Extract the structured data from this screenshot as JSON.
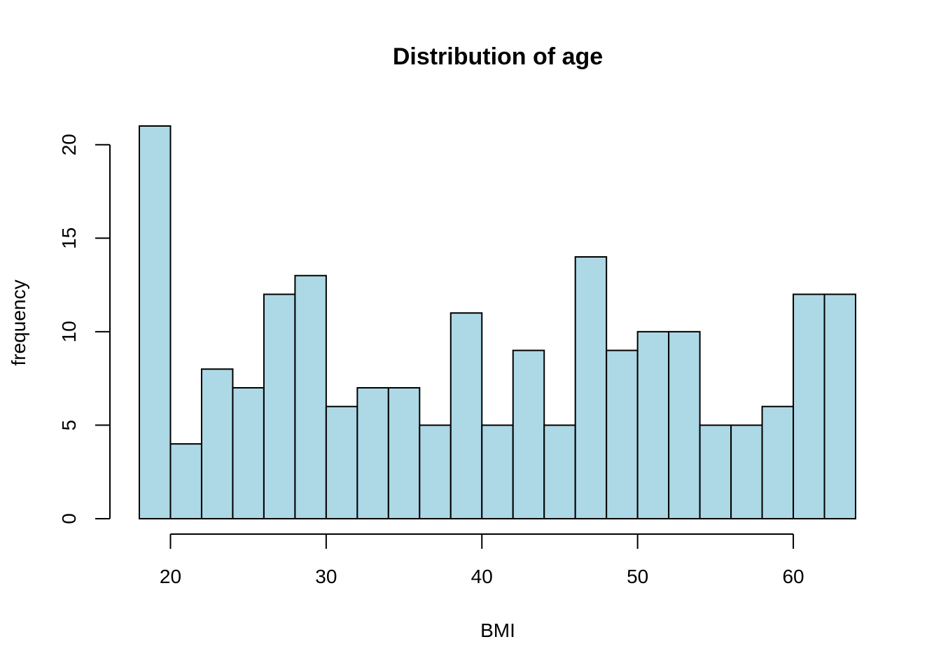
{
  "chart_data": {
    "type": "bar",
    "title": "Distribution of age",
    "xlabel": "BMI",
    "ylabel": "frequency",
    "bin_edges": [
      18,
      20,
      22,
      24,
      26,
      28,
      30,
      32,
      34,
      36,
      38,
      40,
      42,
      44,
      46,
      48,
      50,
      52,
      54,
      56,
      58,
      60,
      62,
      64
    ],
    "values": [
      21,
      4,
      8,
      7,
      12,
      13,
      6,
      7,
      7,
      5,
      11,
      5,
      9,
      5,
      14,
      9,
      10,
      10,
      5,
      5,
      6,
      12,
      12
    ],
    "x_ticks": [
      20,
      30,
      40,
      50,
      60
    ],
    "y_ticks": [
      0,
      5,
      10,
      15,
      20
    ],
    "xlim": [
      18,
      64
    ],
    "ylim": [
      0,
      21
    ],
    "bar_color": "#add8e6",
    "edge_color": "#000000",
    "grid": false,
    "legend": "none"
  }
}
